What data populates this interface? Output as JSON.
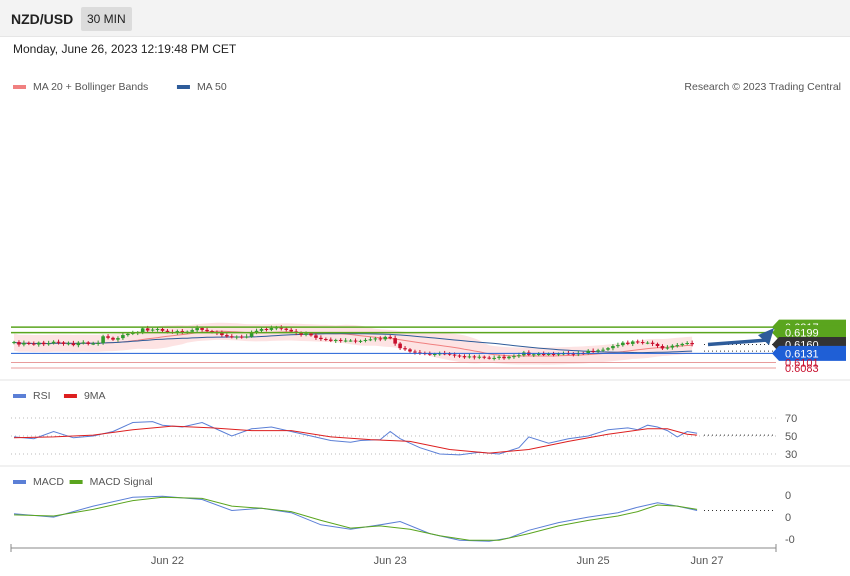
{
  "header": {
    "pair": "NZD/USD",
    "timeframe": "30 MIN",
    "datetime": "Monday, June 26, 2023 12:19:48 PM CET"
  },
  "legend_main": [
    {
      "label": "MA 20 + Bollinger Bands",
      "color": "#f08080"
    },
    {
      "label": "MA 50",
      "color": "#2e5c9a"
    }
  ],
  "credit": "Research © 2023 Trading Central",
  "legend_rsi": [
    {
      "label": "RSI",
      "color": "#5b7fd6"
    },
    {
      "label": "9MA",
      "color": "#dd1f1f"
    }
  ],
  "legend_macd": [
    {
      "label": "MACD",
      "color": "#5b7fd6"
    },
    {
      "label": "MACD Signal",
      "color": "#5aa51e"
    }
  ],
  "colors": {
    "up": "#2f9a2f",
    "down": "#c8102e",
    "band": "#fde3e3",
    "ma20": "#f08080",
    "ma50": "#2e5c9a",
    "resistance": "#5aa51e",
    "support": "#1f5fd6",
    "lower": "#e89b9b",
    "current": "#333333",
    "arrow": "#2e5c9a"
  },
  "chart_data": [
    {
      "type": "candlestick",
      "title": "NZD/USD 30 MIN",
      "x_labels": [
        "Jun 22",
        "Jun 23",
        "Jun 25",
        "Jun 27"
      ],
      "y_range": [
        0.6073,
        0.6227
      ],
      "levels": [
        {
          "value": 0.6217,
          "label": "0.6217",
          "kind": "resistance"
        },
        {
          "value": 0.6199,
          "label": "0.6199",
          "kind": "resistance"
        },
        {
          "value": 0.616,
          "label": "0.6160",
          "kind": "current"
        },
        {
          "value": 0.6131,
          "label": "0.6131",
          "kind": "support"
        },
        {
          "value": 0.6101,
          "label": "0.6101",
          "kind": "lower"
        },
        {
          "value": 0.6083,
          "label": "0.6083",
          "kind": "lower"
        }
      ],
      "closes": [
        0.6168,
        0.616,
        0.6165,
        0.6163,
        0.616,
        0.6166,
        0.6161,
        0.6164,
        0.6169,
        0.6167,
        0.6162,
        0.6164,
        0.6158,
        0.6166,
        0.6167,
        0.6162,
        0.6163,
        0.6165,
        0.6187,
        0.6182,
        0.6176,
        0.6181,
        0.6191,
        0.6195,
        0.6198,
        0.62,
        0.6213,
        0.6206,
        0.6209,
        0.6211,
        0.6205,
        0.6201,
        0.6199,
        0.6204,
        0.62,
        0.6202,
        0.6207,
        0.6214,
        0.6208,
        0.6204,
        0.62,
        0.6198,
        0.6191,
        0.6187,
        0.6184,
        0.6186,
        0.6185,
        0.6186,
        0.6201,
        0.6205,
        0.6211,
        0.6208,
        0.6214,
        0.6216,
        0.6212,
        0.6208,
        0.6203,
        0.6198,
        0.6192,
        0.6196,
        0.619,
        0.6182,
        0.6178,
        0.6176,
        0.6172,
        0.6175,
        0.6172,
        0.6173,
        0.6173,
        0.6171,
        0.6172,
        0.6175,
        0.6177,
        0.618,
        0.6177,
        0.6185,
        0.6181,
        0.6163,
        0.6148,
        0.6144,
        0.6137,
        0.6134,
        0.6132,
        0.613,
        0.6127,
        0.6129,
        0.6131,
        0.613,
        0.6127,
        0.6124,
        0.6122,
        0.6118,
        0.6121,
        0.6118,
        0.612,
        0.6117,
        0.6115,
        0.6116,
        0.612,
        0.6115,
        0.612,
        0.6122,
        0.6125,
        0.6134,
        0.6126,
        0.6128,
        0.6129,
        0.6127,
        0.6129,
        0.6128,
        0.613,
        0.6131,
        0.613,
        0.6128,
        0.6132,
        0.6131,
        0.6139,
        0.6138,
        0.6141,
        0.6143,
        0.6148,
        0.6155,
        0.6158,
        0.6166,
        0.6162,
        0.617,
        0.6168,
        0.6165,
        0.6166,
        0.6162,
        0.6155,
        0.6147,
        0.615,
        0.6156,
        0.6158,
        0.6162,
        0.6165,
        0.6161
      ],
      "rsi": [
        [
          0,
          49
        ],
        [
          4,
          47
        ],
        [
          8,
          55
        ],
        [
          12,
          48
        ],
        [
          16,
          50
        ],
        [
          20,
          55
        ],
        [
          24,
          65
        ],
        [
          28,
          66
        ],
        [
          30,
          62
        ],
        [
          34,
          60
        ],
        [
          38,
          65
        ],
        [
          42,
          55
        ],
        [
          44,
          50
        ],
        [
          48,
          58
        ],
        [
          52,
          60
        ],
        [
          56,
          55
        ],
        [
          60,
          50
        ],
        [
          64,
          45
        ],
        [
          68,
          43
        ],
        [
          70,
          45
        ],
        [
          74,
          46
        ],
        [
          76,
          55
        ],
        [
          78,
          47
        ],
        [
          82,
          37
        ],
        [
          86,
          30
        ],
        [
          90,
          29
        ],
        [
          94,
          32
        ],
        [
          98,
          30
        ],
        [
          102,
          37
        ],
        [
          104,
          49
        ],
        [
          108,
          42
        ],
        [
          112,
          47
        ],
        [
          116,
          50
        ],
        [
          120,
          57
        ],
        [
          124,
          59
        ],
        [
          126,
          57
        ],
        [
          128,
          62
        ],
        [
          130,
          60
        ],
        [
          132,
          56
        ],
        [
          134,
          49
        ],
        [
          136,
          55
        ],
        [
          138,
          53
        ]
      ],
      "rsi_ma": [
        [
          0,
          48
        ],
        [
          8,
          49
        ],
        [
          16,
          51
        ],
        [
          24,
          57
        ],
        [
          32,
          61
        ],
        [
          40,
          59
        ],
        [
          48,
          56
        ],
        [
          56,
          56
        ],
        [
          64,
          49
        ],
        [
          72,
          46
        ],
        [
          80,
          44
        ],
        [
          88,
          35
        ],
        [
          96,
          31
        ],
        [
          104,
          35
        ],
        [
          112,
          44
        ],
        [
          120,
          52
        ],
        [
          128,
          58
        ],
        [
          132,
          58
        ],
        [
          136,
          52
        ],
        [
          138,
          51
        ]
      ],
      "rsi_levels": [
        "70",
        "50",
        "30"
      ],
      "macd": [
        [
          0,
          0.2
        ],
        [
          8,
          -0.1
        ],
        [
          16,
          0.9
        ],
        [
          24,
          1.7
        ],
        [
          30,
          1.8
        ],
        [
          38,
          1.5
        ],
        [
          44,
          0.5
        ],
        [
          50,
          0.7
        ],
        [
          56,
          0.3
        ],
        [
          62,
          -0.8
        ],
        [
          68,
          -1.2
        ],
        [
          74,
          -0.8
        ],
        [
          78,
          -0.5
        ],
        [
          84,
          -1.6
        ],
        [
          90,
          -2.2
        ],
        [
          96,
          -2.3
        ],
        [
          100,
          -2.0
        ],
        [
          104,
          -1.3
        ],
        [
          110,
          -0.6
        ],
        [
          116,
          -0.1
        ],
        [
          122,
          0.3
        ],
        [
          126,
          0.8
        ],
        [
          130,
          1.2
        ],
        [
          134,
          0.9
        ],
        [
          138,
          0.5
        ]
      ],
      "macd_signal": [
        [
          0,
          0.1
        ],
        [
          8,
          0.0
        ],
        [
          16,
          0.6
        ],
        [
          24,
          1.4
        ],
        [
          30,
          1.7
        ],
        [
          38,
          1.6
        ],
        [
          44,
          0.9
        ],
        [
          50,
          0.7
        ],
        [
          56,
          0.4
        ],
        [
          62,
          -0.4
        ],
        [
          68,
          -1.1
        ],
        [
          74,
          -0.9
        ],
        [
          80,
          -1.2
        ],
        [
          86,
          -1.8
        ],
        [
          92,
          -2.2
        ],
        [
          98,
          -2.2
        ],
        [
          104,
          -1.6
        ],
        [
          110,
          -0.9
        ],
        [
          116,
          -0.4
        ],
        [
          122,
          0.0
        ],
        [
          126,
          0.4
        ],
        [
          130,
          1.0
        ],
        [
          134,
          0.9
        ],
        [
          138,
          0.6
        ]
      ],
      "macd_ticks": [
        "0",
        "0",
        "-0"
      ]
    }
  ]
}
